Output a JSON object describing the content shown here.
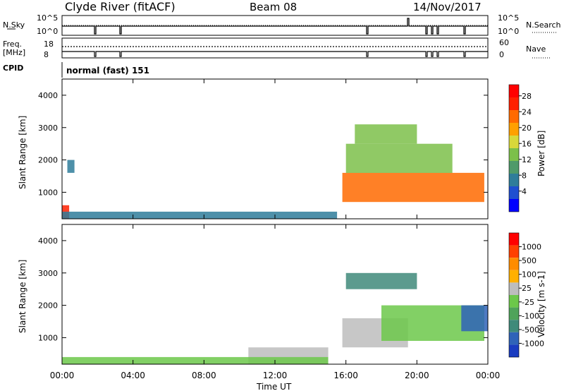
{
  "header": {
    "station": "Clyde River (fitACF)",
    "beam": "Beam 08",
    "date": "14/Nov/2017"
  },
  "status_panels": {
    "nsky_label": "N.Sky",
    "nsky_ticks": [
      "10^5",
      "10^0"
    ],
    "nsearch_label": "N.Search",
    "nsearch_ticks": [
      "10^5",
      "10^0"
    ],
    "freq_label": "Freq.",
    "freq_unit": "[MHz]",
    "freq_ticks": [
      "18",
      "8"
    ],
    "nave_label": "Nave",
    "nave_ticks": [
      "60",
      "0"
    ],
    "cpid_label": "CPID",
    "cpid_value": "normal (fast) 151"
  },
  "axes": {
    "xlabel": "Time UT",
    "x_ticks": [
      "00:00",
      "04:00",
      "08:00",
      "12:00",
      "16:00",
      "20:00",
      "00:00"
    ],
    "ylabel": "Slant Range [km]",
    "y_ticks": [
      "1000",
      "2000",
      "3000",
      "4000"
    ]
  },
  "colorbars": {
    "power": {
      "label": "Power [dB]",
      "ticks": [
        "28",
        "24",
        "20",
        "16",
        "12",
        "8",
        "4"
      ],
      "colors": [
        "#0000ff",
        "#1f4fd0",
        "#2f7d9a",
        "#4f9a6a",
        "#7cc04a",
        "#d8d83a",
        "#ffa000",
        "#ff6a00",
        "#ff2000",
        "#ff0000"
      ]
    },
    "velocity": {
      "label": "Velocity [m s-1]",
      "ticks": [
        "1000",
        "500",
        "100",
        "25",
        "-25",
        "-100",
        "-500",
        "-1000"
      ],
      "colors": [
        "#1a3cc0",
        "#2f63b8",
        "#3f8a7a",
        "#4fa35a",
        "#6cc84a",
        "#bdbdbd",
        "#ffb000",
        "#ff8c00",
        "#ff4000",
        "#ff0000"
      ]
    }
  },
  "chart_data": [
    {
      "type": "heatmap",
      "title": "",
      "xlabel": "",
      "ylabel": "Slant Range [km]",
      "xlim": [
        0,
        24
      ],
      "ylim": [
        180,
        4500
      ],
      "quantity": "Power [dB]",
      "clim": [
        0,
        30
      ],
      "regions": [
        {
          "t": [
            15.8,
            23.8
          ],
          "r": [
            700,
            1600
          ],
          "value": 22
        },
        {
          "t": [
            16.0,
            22.0
          ],
          "r": [
            1600,
            2500
          ],
          "value": 12
        },
        {
          "t": [
            16.5,
            20.0
          ],
          "r": [
            2500,
            3100
          ],
          "value": 14
        },
        {
          "t": [
            0.0,
            0.4
          ],
          "r": [
            180,
            600
          ],
          "value": 24
        },
        {
          "t": [
            0.0,
            15.5
          ],
          "r": [
            180,
            400
          ],
          "value": 8
        },
        {
          "t": [
            0.3,
            0.7
          ],
          "r": [
            1600,
            2000
          ],
          "value": 6
        }
      ]
    },
    {
      "type": "heatmap",
      "title": "",
      "xlabel": "Time UT",
      "ylabel": "Slant Range [km]",
      "xlim": [
        0,
        24
      ],
      "ylim": [
        180,
        4500
      ],
      "quantity": "Velocity [m s-1]",
      "clim": [
        -1000,
        1000
      ],
      "regions": [
        {
          "t": [
            15.8,
            19.5
          ],
          "r": [
            700,
            1600
          ],
          "value": -150
        },
        {
          "t": [
            18.0,
            23.8
          ],
          "r": [
            900,
            2000
          ],
          "value": 80
        },
        {
          "t": [
            16.0,
            20.0
          ],
          "r": [
            2500,
            3000
          ],
          "value": 500
        },
        {
          "t": [
            22.5,
            24.0
          ],
          "r": [
            1200,
            2000
          ],
          "value": 700
        },
        {
          "t": [
            10.5,
            15.0
          ],
          "r": [
            180,
            700
          ],
          "value": -200
        },
        {
          "t": [
            0.0,
            15.0
          ],
          "r": [
            180,
            400
          ],
          "value": 40
        }
      ]
    }
  ]
}
